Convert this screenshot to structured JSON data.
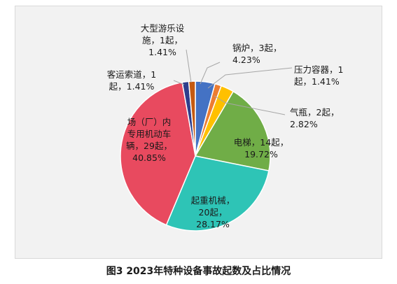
{
  "caption": "图3  2023年特种设备事故起数及占比情况",
  "chart_data": {
    "type": "pie",
    "start_angle_deg": 0,
    "direction": "clockwise",
    "slices": [
      {
        "name": "锅炉",
        "count": "3起",
        "value": 3,
        "percent": "4.23%",
        "color": "#4472c4",
        "lines": [
          "锅炉，3起，",
          "4.23%"
        ]
      },
      {
        "name": "压力容器",
        "count": "1起",
        "value": 1,
        "percent": "1.41%",
        "color": "#ed7d31",
        "lines": [
          "压力容器，1",
          "起，1.41%"
        ]
      },
      {
        "name": "气瓶",
        "count": "2起",
        "value": 2,
        "percent": "2.82%",
        "color": "#ffc000",
        "lines": [
          "气瓶，2起，",
          "2.82%"
        ]
      },
      {
        "name": "电梯",
        "count": "14起",
        "value": 14,
        "percent": "19.72%",
        "color": "#70ad47",
        "lines": [
          "电梯，14起，",
          "19.72%"
        ]
      },
      {
        "name": "起重机械",
        "count": "20起",
        "value": 20,
        "percent": "28.17%",
        "color": "#2ec4b6",
        "lines": [
          "起重机械，",
          "20起，",
          "28.17%"
        ]
      },
      {
        "name": "场（厂）内专用机动车辆",
        "count": "29起",
        "value": 29,
        "percent": "40.85%",
        "color": "#e84a5f",
        "lines": [
          "场（厂）内",
          "专用机动车",
          "辆，29起，",
          "40.85%"
        ]
      },
      {
        "name": "客运索道",
        "count": "1起",
        "value": 1,
        "percent": "1.41%",
        "color": "#2e3e8c",
        "lines": [
          "客运索道，1",
          "起，1.41%"
        ]
      },
      {
        "name": "大型游乐设施",
        "count": "1起",
        "value": 1,
        "percent": "1.41%",
        "color": "#c55a11",
        "lines": [
          "大型游乐设",
          "施，1起，",
          "1.41%"
        ]
      }
    ]
  }
}
